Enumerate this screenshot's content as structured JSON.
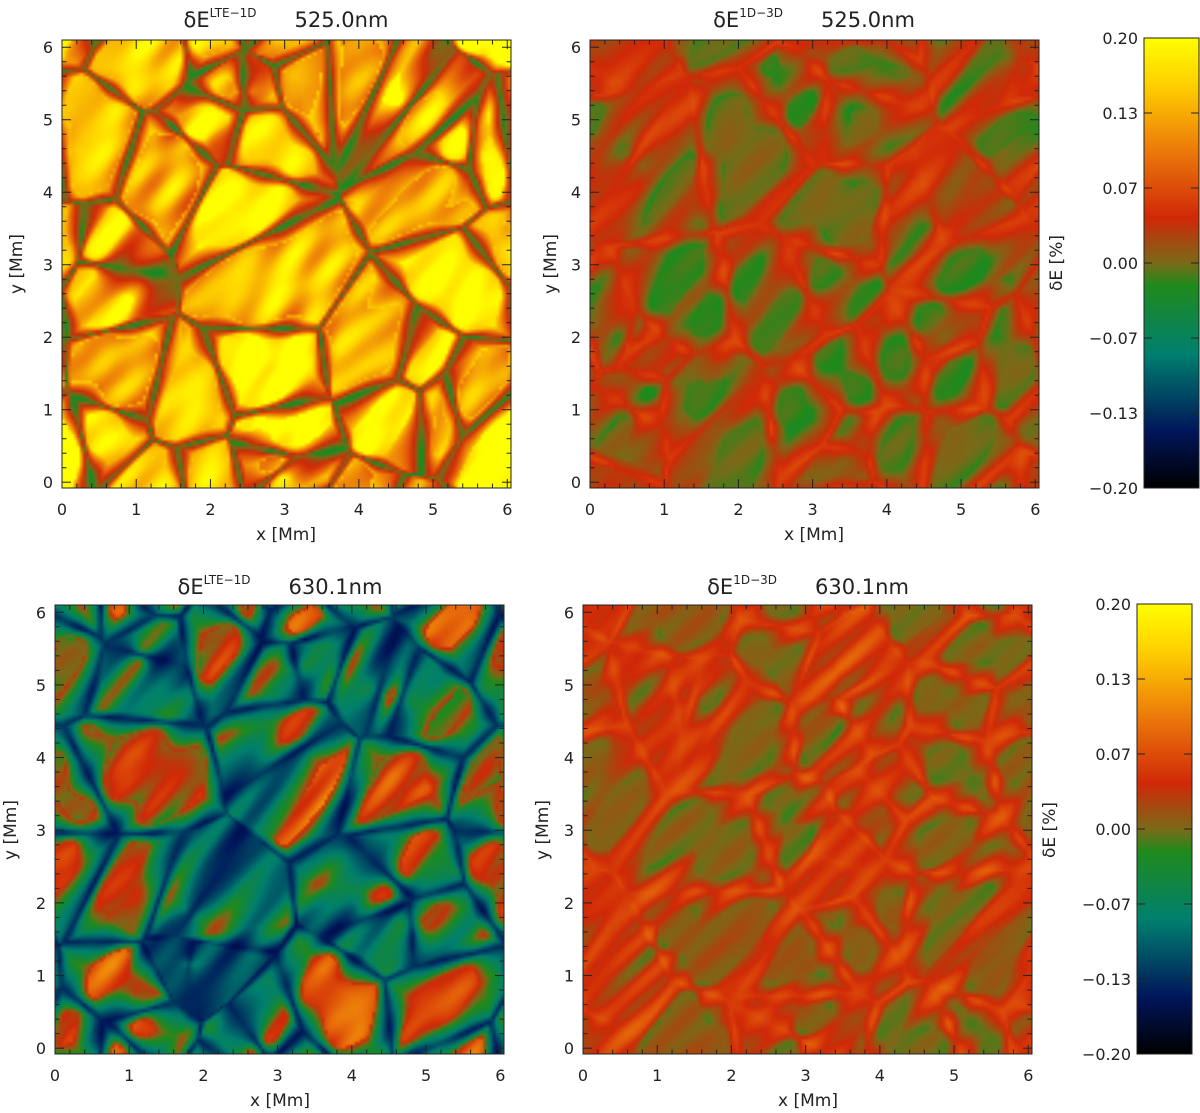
{
  "chart_data": [
    {
      "type": "heatmap",
      "title": {
        "prefix": "δE",
        "superscript": "LTE−1D",
        "wavelength": "525.0nm"
      },
      "xlabel": "x [Mm]",
      "ylabel": "y [Mm]",
      "xlim": [
        0,
        6.05
      ],
      "ylim": [
        -0.08,
        6.1
      ],
      "xticks": [
        "0",
        "1",
        "2",
        "3",
        "4",
        "5",
        "6"
      ],
      "yticks": [
        "0",
        "1",
        "2",
        "3",
        "4",
        "5",
        "6"
      ],
      "field": {
        "mean": 0.16,
        "amplitude": 0.1,
        "lane_value": -0.02,
        "lane_width": 0.05,
        "seed": 1
      },
      "colorbar": null
    },
    {
      "type": "heatmap",
      "title": {
        "prefix": "δE",
        "superscript": "1D−3D",
        "wavelength": "525.0nm"
      },
      "xlabel": "x [Mm]",
      "ylabel": "y [Mm]",
      "xlim": [
        0,
        6.05
      ],
      "ylim": [
        -0.08,
        6.1
      ],
      "xticks": [
        "0",
        "1",
        "2",
        "3",
        "4",
        "5",
        "6"
      ],
      "yticks": [
        "0",
        "1",
        "2",
        "3",
        "4",
        "5",
        "6"
      ],
      "field": {
        "mean": -0.01,
        "amplitude": 0.02,
        "lane_value": 0.05,
        "lane_width": 0.09,
        "seed": 2
      },
      "colorbar": {
        "label": "δE [%]",
        "min": -0.2,
        "max": 0.2,
        "ticks": [
          "0.20",
          "0.13",
          "0.07",
          "0.00",
          "−0.07",
          "−0.13",
          "−0.20"
        ]
      }
    },
    {
      "type": "heatmap",
      "title": {
        "prefix": "δE",
        "superscript": "LTE−1D",
        "wavelength": "630.1nm"
      },
      "xlabel": "x [Mm]",
      "ylabel": "y [Mm]",
      "xlim": [
        0,
        6.05
      ],
      "ylim": [
        -0.08,
        6.1
      ],
      "xticks": [
        "0",
        "1",
        "2",
        "3",
        "4",
        "5",
        "6"
      ],
      "yticks": [
        "0",
        "1",
        "2",
        "3",
        "4",
        "5",
        "6"
      ],
      "field": {
        "mean": 0.04,
        "amplitude": 0.1,
        "lane_value": -0.14,
        "lane_width": 0.1,
        "seed": 3
      },
      "colorbar": null
    },
    {
      "type": "heatmap",
      "title": {
        "prefix": "δE",
        "superscript": "1D−3D",
        "wavelength": "630.1nm"
      },
      "xlabel": "x [Mm]",
      "ylabel": "y [Mm]",
      "xlim": [
        0,
        6.05
      ],
      "ylim": [
        -0.08,
        6.1
      ],
      "xticks": [
        "0",
        "1",
        "2",
        "3",
        "4",
        "5",
        "6"
      ],
      "yticks": [
        "0",
        "1",
        "2",
        "3",
        "4",
        "5",
        "6"
      ],
      "field": {
        "mean": 0.0,
        "amplitude": 0.02,
        "lane_value": 0.06,
        "lane_width": 0.09,
        "seed": 4
      },
      "colorbar": {
        "label": "δE [%]",
        "min": -0.2,
        "max": 0.2,
        "ticks": [
          "0.20",
          "0.13",
          "0.07",
          "0.00",
          "−0.07",
          "−0.13",
          "−0.20"
        ]
      }
    }
  ],
  "colormap": {
    "stops": [
      {
        "v": -0.2,
        "color": "#000000"
      },
      {
        "v": -0.15,
        "color": "#00155a"
      },
      {
        "v": -0.08,
        "color": "#00806e"
      },
      {
        "v": -0.02,
        "color": "#1f8a1c"
      },
      {
        "v": 0.0,
        "color": "#7a6a18"
      },
      {
        "v": 0.04,
        "color": "#d02808"
      },
      {
        "v": 0.1,
        "color": "#ec7a0a"
      },
      {
        "v": 0.16,
        "color": "#ffd200"
      },
      {
        "v": 0.2,
        "color": "#ffff00"
      }
    ]
  }
}
